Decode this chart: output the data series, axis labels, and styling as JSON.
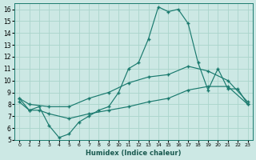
{
  "xlabel": "Humidex (Indice chaleur)",
  "bg_color": "#cce8e4",
  "grid_color": "#aad4cc",
  "line_color": "#1a7a6e",
  "xlim": [
    -0.5,
    23.5
  ],
  "ylim": [
    5,
    16.5
  ],
  "xticks": [
    0,
    1,
    2,
    3,
    4,
    5,
    6,
    7,
    8,
    9,
    10,
    11,
    12,
    13,
    14,
    15,
    16,
    17,
    18,
    19,
    20,
    21,
    22,
    23
  ],
  "yticks": [
    5,
    6,
    7,
    8,
    9,
    10,
    11,
    12,
    13,
    14,
    15,
    16
  ],
  "line1_x": [
    0,
    1,
    2,
    3,
    4,
    5,
    6,
    7,
    8,
    9,
    10,
    11,
    12,
    13,
    14,
    15,
    16,
    17,
    18,
    19,
    20,
    21,
    22,
    23
  ],
  "line1_y": [
    8.5,
    7.5,
    7.8,
    6.2,
    5.2,
    5.5,
    6.5,
    7.0,
    7.5,
    7.8,
    9.0,
    11.0,
    11.5,
    13.5,
    16.2,
    15.8,
    16.0,
    14.8,
    11.5,
    9.2,
    11.0,
    9.3,
    9.3,
    8.0
  ],
  "line2_x": [
    0,
    1,
    3,
    5,
    7,
    9,
    11,
    13,
    15,
    17,
    19,
    21,
    23
  ],
  "line2_y": [
    8.5,
    8.0,
    7.8,
    7.8,
    8.5,
    9.0,
    9.8,
    10.3,
    10.5,
    11.2,
    10.8,
    10.0,
    8.2
  ],
  "line3_x": [
    0,
    1,
    2,
    3,
    5,
    7,
    9,
    11,
    13,
    15,
    17,
    19,
    21,
    23
  ],
  "line3_y": [
    8.2,
    7.5,
    7.5,
    7.2,
    6.8,
    7.2,
    7.5,
    7.8,
    8.2,
    8.5,
    9.2,
    9.5,
    9.5,
    8.0
  ],
  "xlabel_fontsize": 6,
  "tick_fontsize_x": 4.5,
  "tick_fontsize_y": 5.5
}
